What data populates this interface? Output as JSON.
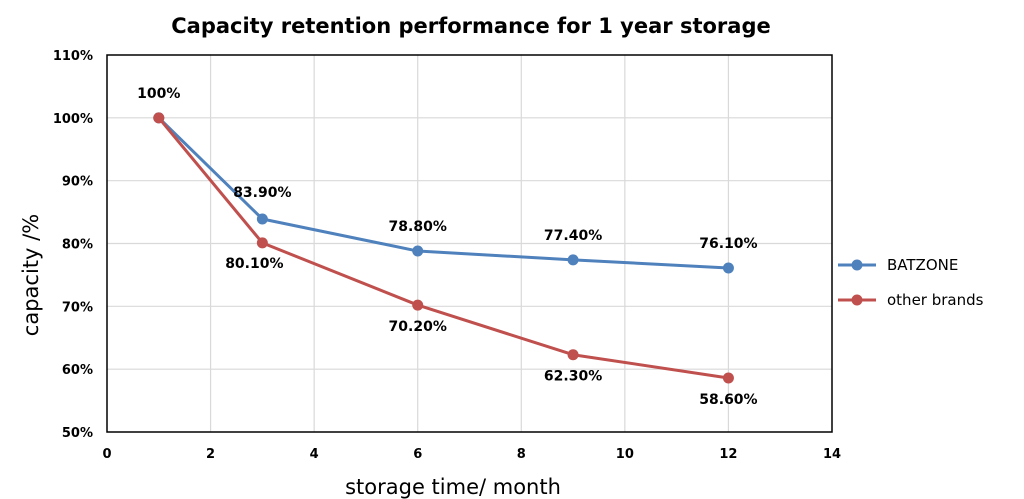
{
  "chart_data": {
    "type": "line",
    "title": "Capacity retention performance for 1 year storage",
    "xlabel": "storage time/ month",
    "ylabel": "capacity /%",
    "xlim": [
      0,
      14
    ],
    "ylim": [
      50,
      110
    ],
    "x_ticks": [
      0,
      2,
      4,
      6,
      8,
      10,
      12,
      14
    ],
    "y_ticks": [
      50,
      60,
      70,
      80,
      90,
      100,
      110
    ],
    "x_tick_labels": [
      "0",
      "2",
      "4",
      "6",
      "8",
      "10",
      "12",
      "14"
    ],
    "y_tick_labels": [
      "50%",
      "60%",
      "70%",
      "80%",
      "90%",
      "100%",
      "110%"
    ],
    "grid": true,
    "legend_position": "right",
    "series": [
      {
        "name": "BATZONE",
        "color": "#4F81BD",
        "x": [
          1,
          3,
          6,
          9,
          12
        ],
        "values": [
          100,
          83.9,
          78.8,
          77.4,
          76.1
        ],
        "labels": [
          "",
          "83.90%",
          "78.80%",
          "77.40%",
          "76.10%"
        ]
      },
      {
        "name": "other brands",
        "color": "#C0504D",
        "x": [
          1,
          3,
          6,
          9,
          12
        ],
        "values": [
          100,
          80.1,
          70.2,
          62.3,
          58.6
        ],
        "labels": [
          "100%",
          "80.10%",
          "70.20%",
          "62.30%",
          "58.60%"
        ]
      }
    ]
  }
}
